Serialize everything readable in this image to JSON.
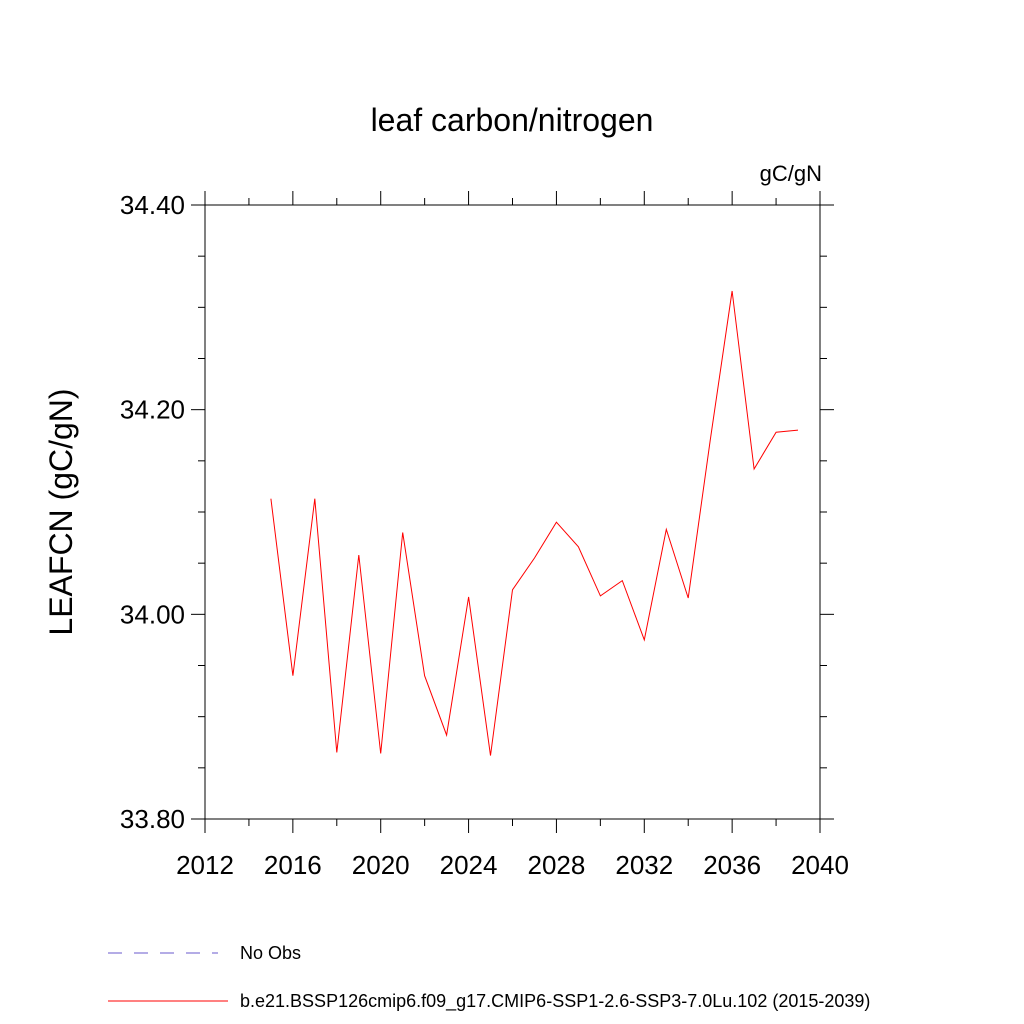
{
  "chart_data": {
    "type": "line",
    "title": "leaf carbon/nitrogen",
    "units": "gC/gN",
    "ylabel": "LEAFCN  (gC/gN)",
    "xlabel": "",
    "xlim": [
      2012,
      2040
    ],
    "ylim": [
      33.8,
      34.4
    ],
    "xticks": [
      2012,
      2016,
      2020,
      2024,
      2028,
      2032,
      2036,
      2040
    ],
    "xtick_labels": [
      "2012",
      "2016",
      "2020",
      "2024",
      "2028",
      "2032",
      "2036",
      "2040"
    ],
    "yticks": [
      33.8,
      34.0,
      34.2,
      34.4
    ],
    "ytick_labels": [
      "33.80",
      "34.00",
      "34.20",
      "34.40"
    ],
    "x_minor_step": 2,
    "y_minor_step": 0.05,
    "grid": false,
    "series": [
      {
        "name": "b.e21.BSSP126cmip6.f09_g17.CMIP6-SSP1-2.6-SSP3-7.0Lu.102 (2015-2039)",
        "color": "#ff0000",
        "x": [
          2015,
          2016,
          2017,
          2018,
          2019,
          2020,
          2021,
          2022,
          2023,
          2024,
          2025,
          2026,
          2027,
          2028,
          2029,
          2030,
          2031,
          2032,
          2033,
          2034,
          2035,
          2036,
          2037,
          2038,
          2039
        ],
        "values": [
          34.113,
          33.94,
          34.113,
          33.865,
          34.058,
          33.864,
          34.08,
          33.94,
          33.882,
          34.017,
          33.862,
          34.024,
          34.055,
          34.09,
          34.066,
          34.018,
          34.033,
          33.975,
          34.083,
          34.016,
          34.17,
          34.316,
          34.142,
          34.178,
          34.18
        ]
      }
    ],
    "legend": [
      {
        "label": "No Obs",
        "color": "#6a5acd",
        "style": "dashed"
      },
      {
        "label": "b.e21.BSSP126cmip6.f09_g17.CMIP6-SSP1-2.6-SSP3-7.0Lu.102 (2015-2039)",
        "color": "#ff0000",
        "style": "solid"
      }
    ]
  }
}
